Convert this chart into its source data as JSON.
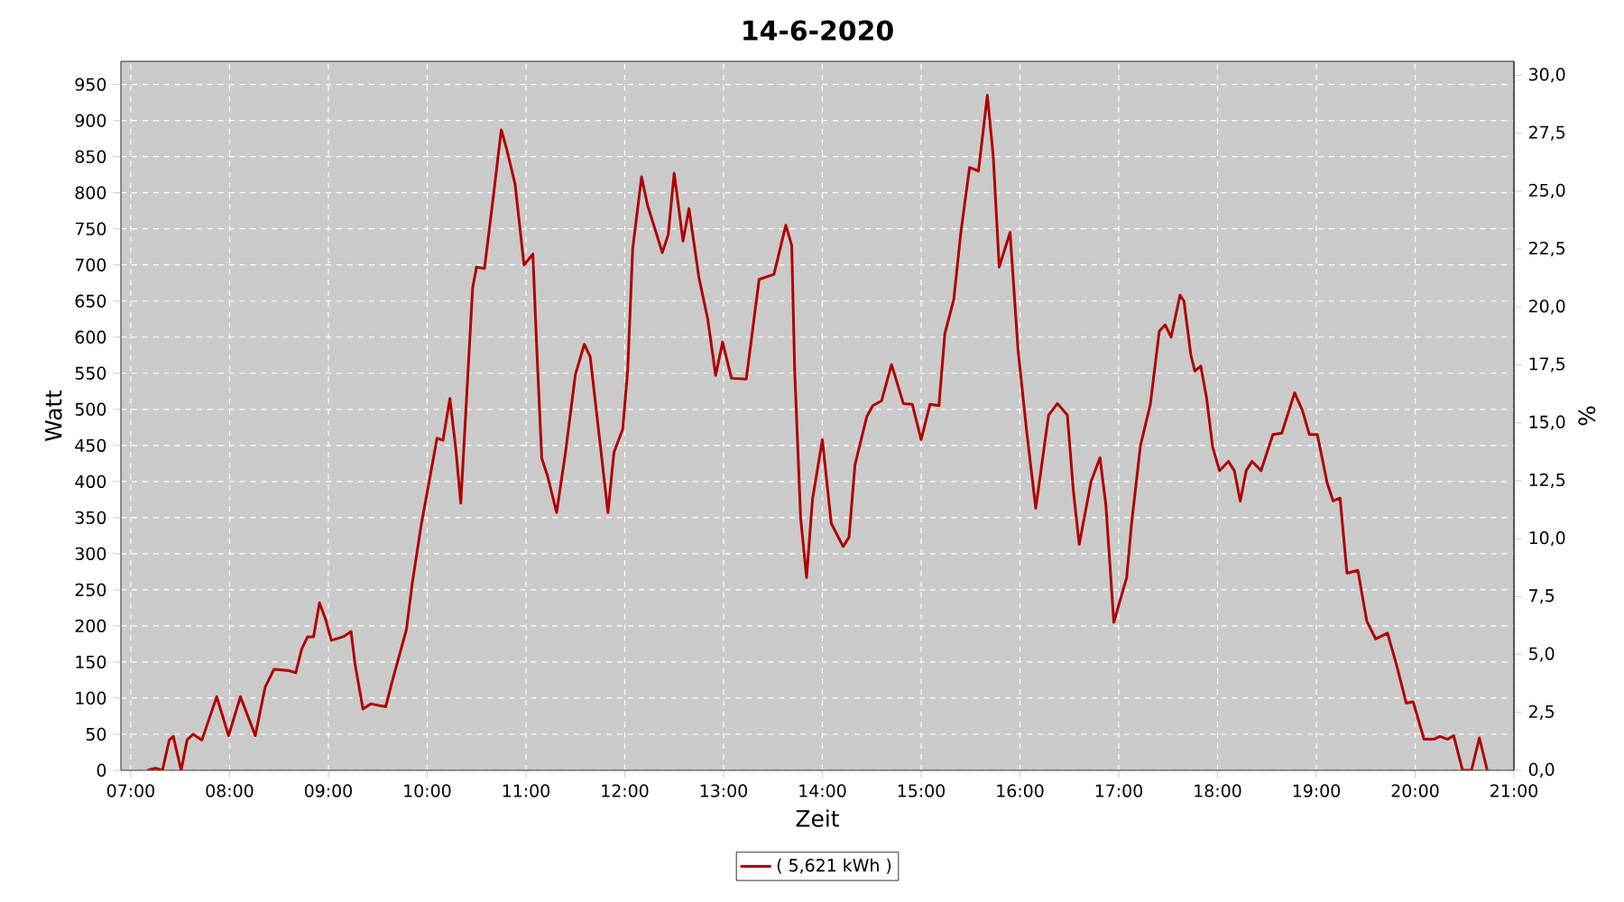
{
  "chart_data": {
    "type": "line",
    "title": "14-6-2020",
    "xlabel": "Zeit",
    "ylabel": "Watt",
    "y2label": "%",
    "x": [
      7.17,
      7.25,
      7.32,
      7.39,
      7.43,
      7.51,
      7.57,
      7.63,
      7.72,
      7.87,
      7.99,
      8.11,
      8.26,
      8.36,
      8.45,
      8.6,
      8.67,
      8.73,
      8.79,
      8.85,
      8.91,
      8.97,
      9.03,
      9.15,
      9.23,
      9.27,
      9.35,
      9.43,
      9.58,
      9.64,
      9.79,
      9.85,
      9.94,
      10.0,
      10.1,
      10.16,
      10.23,
      10.29,
      10.34,
      10.4,
      10.46,
      10.5,
      10.58,
      10.67,
      10.75,
      10.8,
      10.89,
      10.98,
      11.07,
      11.11,
      11.16,
      11.22,
      11.31,
      11.4,
      11.5,
      11.59,
      11.65,
      11.74,
      11.83,
      11.89,
      11.98,
      12.03,
      12.08,
      12.17,
      12.23,
      12.38,
      12.44,
      12.5,
      12.59,
      12.65,
      12.75,
      12.84,
      12.92,
      12.99,
      13.08,
      13.23,
      13.36,
      13.51,
      13.63,
      13.69,
      13.72,
      13.78,
      13.84,
      13.9,
      14.0,
      14.09,
      14.21,
      14.27,
      14.33,
      14.45,
      14.51,
      14.6,
      14.7,
      14.82,
      14.91,
      15.0,
      15.09,
      15.18,
      15.24,
      15.33,
      15.4,
      15.49,
      15.58,
      15.67,
      15.73,
      15.79,
      15.9,
      15.98,
      16.07,
      16.16,
      16.29,
      16.38,
      16.48,
      16.54,
      16.6,
      16.72,
      16.81,
      16.87,
      16.95,
      17.08,
      17.13,
      17.22,
      17.32,
      17.41,
      17.47,
      17.53,
      17.62,
      17.66,
      17.73,
      17.77,
      17.83,
      17.89,
      17.95,
      18.02,
      18.11,
      18.17,
      18.23,
      18.29,
      18.35,
      18.44,
      18.5,
      18.56,
      18.65,
      18.78,
      18.86,
      18.93,
      19.01,
      19.11,
      19.17,
      19.24,
      19.31,
      19.42,
      19.51,
      19.6,
      19.72,
      19.81,
      19.91,
      19.98,
      20.09,
      20.19,
      20.25,
      20.33,
      20.39,
      20.48,
      20.57,
      20.65,
      20.73
    ],
    "series": [
      {
        "name": "( 5,621 kWh )",
        "color": "#b00000",
        "values": [
          0,
          3,
          0,
          42,
          47,
          0,
          42,
          50,
          42,
          102,
          48,
          102,
          48,
          115,
          140,
          138,
          135,
          168,
          185,
          185,
          232,
          210,
          180,
          185,
          192,
          147,
          85,
          92,
          88,
          120,
          195,
          260,
          340,
          385,
          460,
          457,
          515,
          445,
          370,
          518,
          668,
          697,
          695,
          795,
          887,
          863,
          812,
          700,
          715,
          582,
          432,
          407,
          357,
          440,
          548,
          590,
          573,
          465,
          357,
          440,
          473,
          555,
          722,
          822,
          783,
          717,
          742,
          827,
          733,
          778,
          683,
          625,
          547,
          593,
          543,
          542,
          680,
          687,
          755,
          727,
          553,
          350,
          267,
          375,
          458,
          342,
          310,
          323,
          423,
          490,
          505,
          512,
          562,
          508,
          507,
          458,
          507,
          505,
          605,
          652,
          743,
          835,
          830,
          935,
          850,
          697,
          745,
          583,
          467,
          363,
          492,
          508,
          492,
          388,
          313,
          400,
          433,
          367,
          205,
          267,
          342,
          450,
          507,
          608,
          617,
          600,
          658,
          650,
          575,
          553,
          560,
          515,
          448,
          415,
          428,
          415,
          373,
          415,
          428,
          415,
          440,
          465,
          467,
          523,
          498,
          465,
          465,
          398,
          373,
          377,
          273,
          277,
          207,
          182,
          190,
          147,
          93,
          95,
          43,
          43,
          47,
          43,
          48,
          0,
          0,
          45,
          0
        ]
      }
    ],
    "xlim": [
      6.9,
      21.0
    ],
    "xticks": [
      {
        "value": 7,
        "label": "07:00"
      },
      {
        "value": 8,
        "label": "08:00"
      },
      {
        "value": 9,
        "label": "09:00"
      },
      {
        "value": 10,
        "label": "10:00"
      },
      {
        "value": 11,
        "label": "11:00"
      },
      {
        "value": 12,
        "label": "12:00"
      },
      {
        "value": 13,
        "label": "13:00"
      },
      {
        "value": 14,
        "label": "14:00"
      },
      {
        "value": 15,
        "label": "15:00"
      },
      {
        "value": 16,
        "label": "16:00"
      },
      {
        "value": 17,
        "label": "17:00"
      },
      {
        "value": 18,
        "label": "18:00"
      },
      {
        "value": 19,
        "label": "19:00"
      },
      {
        "value": 20,
        "label": "20:00"
      },
      {
        "value": 21,
        "label": "21:00"
      }
    ],
    "ylim": [
      0,
      982
    ],
    "yticks": [
      0,
      50,
      100,
      150,
      200,
      250,
      300,
      350,
      400,
      450,
      500,
      550,
      600,
      650,
      700,
      750,
      800,
      850,
      900,
      950
    ],
    "y2lim": [
      0,
      30.6
    ],
    "y2ticks": [
      {
        "value": 0,
        "label": "0,0"
      },
      {
        "value": 2.5,
        "label": "2,5"
      },
      {
        "value": 5,
        "label": "5,0"
      },
      {
        "value": 7.5,
        "label": "7,5"
      },
      {
        "value": 10,
        "label": "10,0"
      },
      {
        "value": 12.5,
        "label": "12,5"
      },
      {
        "value": 15,
        "label": "15,0"
      },
      {
        "value": 17.5,
        "label": "17,5"
      },
      {
        "value": 20,
        "label": "20,0"
      },
      {
        "value": 22.5,
        "label": "22,5"
      },
      {
        "value": 25,
        "label": "25,0"
      },
      {
        "value": 27.5,
        "label": "27,5"
      },
      {
        "value": 30,
        "label": "30,0"
      }
    ],
    "grid": true,
    "legend": "bottom"
  }
}
